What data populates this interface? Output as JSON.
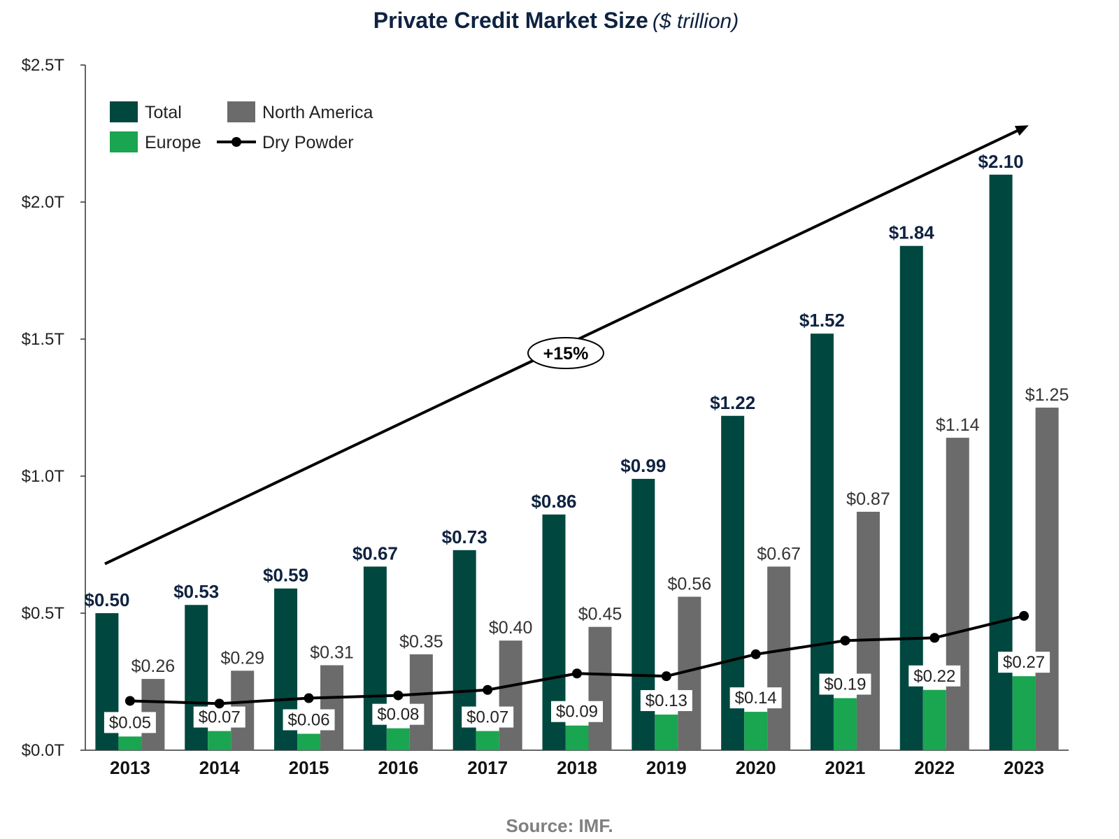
{
  "chart_data": {
    "type": "bar",
    "title": "Private Credit Market Size",
    "subtitle": "($ trillion)",
    "categories": [
      "2013",
      "2014",
      "2015",
      "2016",
      "2017",
      "2018",
      "2019",
      "2020",
      "2021",
      "2022",
      "2023"
    ],
    "series": [
      {
        "name": "Total",
        "color": "#00483f",
        "values": [
          0.5,
          0.53,
          0.59,
          0.67,
          0.73,
          0.86,
          0.99,
          1.22,
          1.52,
          1.84,
          2.1
        ],
        "labels": [
          "$0.50",
          "$0.53",
          "$0.59",
          "$0.67",
          "$0.73",
          "$0.86",
          "$0.99",
          "$1.22",
          "$1.52",
          "$1.84",
          "$2.10"
        ]
      },
      {
        "name": "Europe",
        "color": "#1aa550",
        "values": [
          0.05,
          0.07,
          0.06,
          0.08,
          0.07,
          0.09,
          0.13,
          0.14,
          0.19,
          0.22,
          0.27
        ],
        "labels": [
          "$0.05",
          "$0.07",
          "$0.06",
          "$0.08",
          "$0.07",
          "$0.09",
          "$0.13",
          "$0.14",
          "$0.19",
          "$0.22",
          "$0.27"
        ]
      },
      {
        "name": "North America",
        "color": "#6b6b6b",
        "values": [
          0.26,
          0.29,
          0.31,
          0.35,
          0.4,
          0.45,
          0.56,
          0.67,
          0.87,
          1.14,
          1.25
        ],
        "labels": [
          "$0.26",
          "$0.29",
          "$0.31",
          "$0.35",
          "$0.40",
          "$0.45",
          "$0.56",
          "$0.67",
          "$0.87",
          "$1.14",
          "$1.25"
        ]
      },
      {
        "name": "Dry Powder",
        "type": "line",
        "color": "#000000",
        "values": [
          0.18,
          0.17,
          0.19,
          0.2,
          0.22,
          0.28,
          0.27,
          0.35,
          0.4,
          0.41,
          0.49
        ]
      }
    ],
    "ylim": [
      0,
      2.5
    ],
    "yticks": [
      0,
      0.5,
      1.0,
      1.5,
      2.0,
      2.5
    ],
    "ytick_labels": [
      "$0.0T",
      "$0.5T",
      "$1.0T",
      "$1.5T",
      "$2.0T",
      "$2.5T"
    ],
    "legend": [
      "Total",
      "North America",
      "Europe",
      "Dry Powder"
    ],
    "legend_position": "top-left",
    "annotation": {
      "text": "+15%",
      "arrow_from": [
        0,
        0.68
      ],
      "arrow_to": [
        10.6,
        2.28
      ]
    },
    "source": "Source: IMF."
  }
}
